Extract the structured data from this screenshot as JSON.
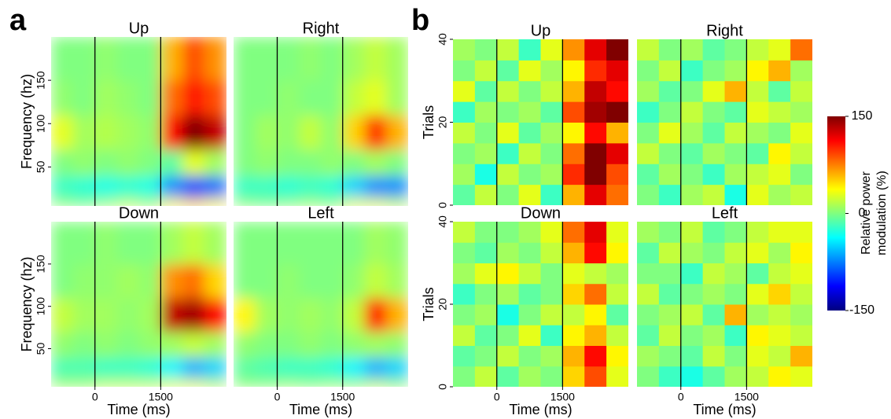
{
  "panel_labels": [
    "a",
    "b"
  ],
  "colorbar": {
    "lim": [
      -150,
      150
    ],
    "ticks": [
      150,
      0,
      -150
    ],
    "label_lines": [
      "Relative power",
      "modulation (%)"
    ]
  },
  "chart_data": [
    {
      "type": "spectrogram",
      "title": "Up",
      "ylabel": "Frequency (hz)",
      "xlim": [
        -1000,
        3000
      ],
      "ylim": [
        5,
        200
      ],
      "yticks": [
        50,
        100,
        150
      ],
      "vlines": [
        0,
        1500
      ],
      "xbins": [
        -1000,
        -500,
        0,
        500,
        1000,
        1500,
        2000,
        2500,
        3000
      ],
      "ybins": [
        5,
        15,
        40,
        70,
        110,
        150,
        200
      ],
      "values": [
        [
          5,
          0,
          10,
          20,
          10,
          40,
          50,
          40
        ],
        [
          -20,
          -25,
          -30,
          -25,
          -30,
          -70,
          -90,
          -80
        ],
        [
          0,
          5,
          0,
          5,
          0,
          -10,
          30,
          10
        ],
        [
          30,
          10,
          15,
          10,
          5,
          110,
          150,
          130
        ],
        [
          5,
          0,
          10,
          5,
          0,
          80,
          110,
          90
        ],
        [
          0,
          0,
          5,
          0,
          0,
          60,
          90,
          70
        ]
      ]
    },
    {
      "type": "spectrogram",
      "title": "Right",
      "xlim": [
        -1000,
        3000
      ],
      "ylim": [
        5,
        200
      ],
      "vlines": [
        0,
        1500
      ],
      "xbins": [
        -1000,
        -500,
        0,
        500,
        1000,
        1500,
        2000,
        2500,
        3000
      ],
      "ybins": [
        5,
        15,
        40,
        70,
        110,
        150,
        200
      ],
      "values": [
        [
          5,
          0,
          5,
          10,
          5,
          30,
          30,
          20
        ],
        [
          -20,
          -20,
          -25,
          -20,
          -25,
          -50,
          -70,
          -70
        ],
        [
          0,
          5,
          0,
          0,
          5,
          0,
          10,
          0
        ],
        [
          0,
          10,
          5,
          20,
          5,
          50,
          100,
          60
        ],
        [
          0,
          0,
          5,
          0,
          0,
          20,
          30,
          10
        ],
        [
          0,
          0,
          0,
          5,
          0,
          10,
          20,
          10
        ]
      ]
    },
    {
      "type": "spectrogram",
      "title": "Down",
      "ylabel": "Frequency (hz)",
      "xlabel": "Time (ms)",
      "xlim": [
        -1000,
        3000
      ],
      "ylim": [
        5,
        200
      ],
      "xticks": [
        0,
        1500
      ],
      "yticks": [
        50,
        100,
        150
      ],
      "vlines": [
        0,
        1500
      ],
      "xbins": [
        -1000,
        -500,
        0,
        500,
        1000,
        1500,
        2000,
        2500,
        3000
      ],
      "ybins": [
        5,
        15,
        40,
        70,
        110,
        150,
        200
      ],
      "values": [
        [
          10,
          10,
          20,
          20,
          20,
          30,
          30,
          20
        ],
        [
          -15,
          -15,
          -20,
          -20,
          -25,
          -40,
          -60,
          -50
        ],
        [
          5,
          0,
          5,
          0,
          5,
          10,
          20,
          10
        ],
        [
          20,
          10,
          10,
          5,
          10,
          130,
          140,
          110
        ],
        [
          0,
          5,
          5,
          10,
          5,
          70,
          80,
          50
        ],
        [
          0,
          0,
          5,
          0,
          0,
          10,
          20,
          10
        ]
      ]
    },
    {
      "type": "spectrogram",
      "title": "Left",
      "xlabel": "Time (ms)",
      "xlim": [
        -1000,
        3000
      ],
      "ylim": [
        5,
        200
      ],
      "xticks": [
        0,
        1500
      ],
      "vlines": [
        0,
        1500
      ],
      "xbins": [
        -1000,
        -500,
        0,
        500,
        1000,
        1500,
        2000,
        2500,
        3000
      ],
      "ybins": [
        5,
        15,
        40,
        70,
        110,
        150,
        200
      ],
      "values": [
        [
          5,
          5,
          10,
          5,
          10,
          10,
          20,
          10
        ],
        [
          -10,
          -15,
          -20,
          -20,
          -25,
          -40,
          -60,
          -50
        ],
        [
          5,
          0,
          0,
          5,
          0,
          5,
          10,
          5
        ],
        [
          40,
          10,
          5,
          10,
          5,
          20,
          110,
          60
        ],
        [
          0,
          0,
          5,
          0,
          0,
          5,
          20,
          10
        ],
        [
          0,
          0,
          0,
          0,
          0,
          0,
          10,
          5
        ]
      ]
    },
    {
      "type": "raster",
      "title": "Up",
      "ylabel": "Trials",
      "xlim": [
        -1000,
        3000
      ],
      "ylim": [
        0,
        40
      ],
      "yticks": [
        0,
        20,
        40
      ],
      "vlines": [
        0,
        1500
      ],
      "xbins": [
        -1000,
        -500,
        0,
        500,
        1000,
        1500,
        2000,
        2500,
        3000
      ],
      "ybins": [
        0,
        5,
        10,
        15,
        20,
        25,
        30,
        35,
        40
      ],
      "values": [
        [
          -10,
          20,
          0,
          30,
          -20,
          60,
          120,
          80
        ],
        [
          10,
          -30,
          20,
          0,
          10,
          100,
          150,
          90
        ],
        [
          0,
          10,
          -20,
          20,
          0,
          80,
          150,
          120
        ],
        [
          20,
          0,
          30,
          -10,
          10,
          40,
          110,
          60
        ],
        [
          -20,
          10,
          0,
          10,
          -10,
          90,
          140,
          150
        ],
        [
          30,
          -10,
          20,
          0,
          20,
          60,
          130,
          110
        ],
        [
          0,
          20,
          -10,
          30,
          10,
          40,
          100,
          120
        ],
        [
          10,
          0,
          20,
          -20,
          30,
          70,
          120,
          150
        ]
      ]
    },
    {
      "type": "raster",
      "title": "Right",
      "xlim": [
        -1000,
        3000
      ],
      "ylim": [
        0,
        40
      ],
      "vlines": [
        0,
        1500
      ],
      "xbins": [
        -1000,
        -500,
        0,
        500,
        1000,
        1500,
        2000,
        2500,
        3000
      ],
      "ybins": [
        0,
        5,
        10,
        15,
        20,
        25,
        30,
        35,
        40
      ],
      "values": [
        [
          0,
          -20,
          10,
          20,
          -30,
          30,
          10,
          20
        ],
        [
          -10,
          10,
          0,
          -20,
          10,
          20,
          30,
          0
        ],
        [
          20,
          0,
          -10,
          10,
          0,
          -10,
          40,
          20
        ],
        [
          0,
          30,
          10,
          -10,
          20,
          10,
          0,
          30
        ],
        [
          -20,
          0,
          20,
          0,
          -10,
          30,
          20,
          10
        ],
        [
          10,
          -10,
          0,
          30,
          60,
          20,
          -10,
          20
        ],
        [
          0,
          20,
          -20,
          0,
          10,
          40,
          60,
          10
        ],
        [
          20,
          0,
          10,
          -10,
          0,
          20,
          30,
          80
        ]
      ]
    },
    {
      "type": "raster",
      "title": "Down",
      "ylabel": "Trials",
      "xlabel": "Time (ms)",
      "xlim": [
        -1000,
        3000
      ],
      "ylim": [
        0,
        40
      ],
      "xticks": [
        0,
        1500
      ],
      "yticks": [
        0,
        20,
        40
      ],
      "vlines": [
        0,
        1500
      ],
      "xbins": [
        -1000,
        -500,
        0,
        500,
        1000,
        1500,
        2000,
        2500,
        3000
      ],
      "ybins": [
        0,
        5,
        10,
        15,
        20,
        25,
        30,
        35,
        40
      ],
      "values": [
        [
          0,
          20,
          -10,
          10,
          0,
          50,
          90,
          30
        ],
        [
          -10,
          0,
          20,
          0,
          10,
          60,
          110,
          40
        ],
        [
          20,
          -10,
          0,
          30,
          -20,
          40,
          60,
          20
        ],
        [
          0,
          10,
          -30,
          0,
          20,
          20,
          40,
          -10
        ],
        [
          -20,
          0,
          10,
          -10,
          0,
          50,
          80,
          20
        ],
        [
          10,
          30,
          40,
          20,
          0,
          30,
          20,
          10
        ],
        [
          0,
          -10,
          10,
          0,
          20,
          60,
          110,
          40
        ],
        [
          20,
          0,
          0,
          10,
          30,
          80,
          120,
          30
        ]
      ]
    },
    {
      "type": "raster",
      "title": "Left",
      "xlabel": "Time (ms)",
      "xlim": [
        -1000,
        3000
      ],
      "ylim": [
        0,
        40
      ],
      "xticks": [
        0,
        1500
      ],
      "vlines": [
        0,
        1500
      ],
      "xbins": [
        -1000,
        -500,
        0,
        500,
        1000,
        1500,
        2000,
        2500,
        3000
      ],
      "ybins": [
        0,
        5,
        10,
        15,
        20,
        25,
        30,
        35,
        40
      ],
      "values": [
        [
          0,
          -20,
          -30,
          -10,
          10,
          20,
          40,
          30
        ],
        [
          10,
          0,
          -10,
          20,
          0,
          30,
          20,
          60
        ],
        [
          -10,
          20,
          0,
          10,
          -20,
          40,
          30,
          20
        ],
        [
          0,
          10,
          20,
          -10,
          60,
          10,
          20,
          10
        ],
        [
          20,
          -10,
          0,
          10,
          0,
          30,
          50,
          20
        ],
        [
          0,
          0,
          -20,
          20,
          10,
          -10,
          20,
          30
        ],
        [
          -10,
          20,
          10,
          0,
          20,
          30,
          10,
          40
        ],
        [
          10,
          0,
          20,
          -10,
          0,
          20,
          30,
          30
        ]
      ]
    }
  ]
}
